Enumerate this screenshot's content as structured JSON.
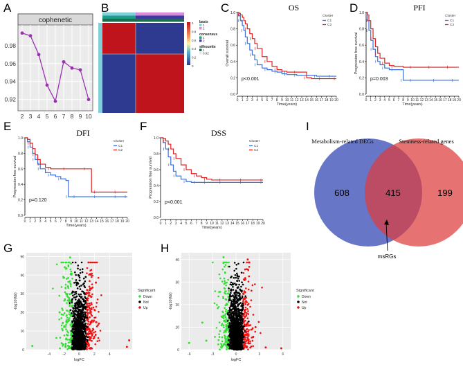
{
  "panel_letters": {
    "A": "A",
    "B": "B",
    "C": "C",
    "D": "D",
    "E": "E",
    "F": "F",
    "G": "G",
    "H": "H",
    "I": "I"
  },
  "chart_data": [
    {
      "id": "A",
      "type": "line",
      "title": "cophenetic",
      "x": [
        2,
        3,
        4,
        5,
        6,
        7,
        8,
        9,
        10
      ],
      "values": [
        0.994,
        0.991,
        0.97,
        0.936,
        0.918,
        0.962,
        0.955,
        0.953,
        0.92
      ],
      "xticks": [
        "2",
        "3",
        "4",
        "5",
        "6",
        "7",
        "8",
        "9",
        "10"
      ],
      "yticks": [
        "0.92",
        "0.94",
        "0.96",
        "0.98"
      ],
      "ylim": [
        0.912,
        1.0
      ],
      "color": "#9b30b0"
    },
    {
      "id": "B",
      "type": "heatmap",
      "matrix": [
        [
          1,
          0
        ],
        [
          0,
          1
        ]
      ],
      "top_bars": [
        "basis",
        "consensus",
        "silhouette"
      ],
      "legend_titles": [
        "basis",
        "consensus",
        "silhouette"
      ],
      "legend_items": {
        "basis": [
          "1",
          "2"
        ],
        "consensus": [
          "1",
          "2"
        ],
        "silhouette": [
          "1",
          "0.92"
        ]
      },
      "scale_ticks": [
        "1",
        "0.8",
        "0.6",
        "0.4",
        "0.2",
        "0"
      ],
      "colors": {
        "high": "#c0141c",
        "low": "#2e3a90",
        "basis1": "#7fd0d8",
        "basis2": "#d78ad8",
        "cons1": "#1f9d8a",
        "cons2": "#3c3ca0",
        "sil": "#1c6e4e"
      }
    },
    {
      "id": "C",
      "type": "line",
      "kind": "km",
      "title": "OS",
      "xlabel": "Time(years)",
      "ylabel": "Overall survival",
      "pvalue": "p<0.001",
      "legend_title": "Cluster",
      "xticks": [
        "0",
        "1",
        "2",
        "3",
        "4",
        "5",
        "6",
        "7",
        "8",
        "9",
        "10",
        "11",
        "12",
        "13",
        "14",
        "15",
        "16",
        "17",
        "18",
        "19",
        "20"
      ],
      "yticks": [
        "0.0",
        "0.2",
        "0.4",
        "0.6",
        "0.8",
        "1.0"
      ],
      "xlim": [
        0,
        20
      ],
      "ylim": [
        0,
        1
      ],
      "series": [
        {
          "name": "C1",
          "color": "#3a70d8",
          "x": [
            0,
            0.3,
            0.6,
            1,
            1.3,
            1.6,
            2,
            2.5,
            3,
            3.5,
            4,
            5,
            6,
            7,
            8,
            9,
            10,
            11,
            12,
            14,
            16,
            18,
            19,
            20
          ],
          "values": [
            1,
            0.96,
            0.9,
            0.84,
            0.78,
            0.7,
            0.62,
            0.54,
            0.48,
            0.42,
            0.36,
            0.32,
            0.3,
            0.28,
            0.27,
            0.25,
            0.24,
            0.24,
            0.23,
            0.23,
            0.22,
            0.22,
            0.22,
            0.22
          ]
        },
        {
          "name": "C2",
          "color": "#e02020",
          "x": [
            0,
            0.3,
            0.6,
            1,
            1.3,
            1.6,
            2,
            2.5,
            3,
            3.5,
            4,
            5,
            6,
            7,
            8,
            9,
            10,
            11,
            12,
            13,
            14,
            15,
            17,
            19,
            20
          ],
          "values": [
            1,
            0.99,
            0.97,
            0.94,
            0.9,
            0.86,
            0.8,
            0.74,
            0.68,
            0.62,
            0.56,
            0.46,
            0.4,
            0.34,
            0.3,
            0.28,
            0.27,
            0.27,
            0.27,
            0.27,
            0.2,
            0.19,
            0.19,
            0.19,
            0.19
          ]
        }
      ]
    },
    {
      "id": "D",
      "type": "line",
      "kind": "km",
      "title": "PFI",
      "xlabel": "Time(years)",
      "ylabel": "Progression free survival",
      "pvalue": "p=0.003",
      "legend_title": "Cluster",
      "xticks": [
        "0",
        "1",
        "2",
        "3",
        "4",
        "5",
        "6",
        "7",
        "8",
        "9",
        "10",
        "11",
        "12",
        "13",
        "14",
        "15",
        "16",
        "17",
        "18",
        "19",
        "20"
      ],
      "yticks": [
        "0.0",
        "0.2",
        "0.4",
        "0.6",
        "0.8",
        "1.0"
      ],
      "xlim": [
        0,
        20
      ],
      "ylim": [
        0,
        1
      ],
      "series": [
        {
          "name": "C1",
          "color": "#3a70d8",
          "x": [
            0,
            0.3,
            0.6,
            1,
            1.5,
            2,
            2.5,
            3,
            4,
            5,
            6,
            7,
            8,
            9,
            10,
            12,
            15,
            18,
            19,
            20
          ],
          "values": [
            1,
            0.9,
            0.78,
            0.66,
            0.55,
            0.46,
            0.4,
            0.36,
            0.32,
            0.3,
            0.3,
            0.3,
            0.17,
            0.17,
            0.17,
            0.17,
            0.17,
            0.17,
            0.17,
            0.17
          ]
        },
        {
          "name": "C2",
          "color": "#e02020",
          "x": [
            0,
            0.3,
            0.6,
            1,
            1.5,
            2,
            2.5,
            3,
            4,
            5,
            6,
            8,
            10,
            12,
            14,
            16,
            18,
            20
          ],
          "values": [
            1,
            0.97,
            0.9,
            0.8,
            0.68,
            0.58,
            0.5,
            0.44,
            0.38,
            0.35,
            0.34,
            0.33,
            0.33,
            0.33,
            0.33,
            0.33,
            0.33,
            0.33
          ]
        }
      ]
    },
    {
      "id": "E",
      "type": "line",
      "kind": "km",
      "title": "DFI",
      "xlabel": "Time(years)",
      "ylabel": "Progression free survival",
      "pvalue": "p=0.120",
      "legend_title": "Cluster",
      "xticks": [
        "0",
        "1",
        "2",
        "3",
        "4",
        "5",
        "6",
        "7",
        "8",
        "9",
        "10",
        "11",
        "12",
        "13",
        "14",
        "15",
        "16",
        "17",
        "18",
        "19",
        "20"
      ],
      "yticks": [
        "0.0",
        "0.2",
        "0.4",
        "0.6",
        "0.8",
        "1.0"
      ],
      "xlim": [
        0,
        20
      ],
      "ylim": [
        0,
        1
      ],
      "series": [
        {
          "name": "C1",
          "color": "#3a70d8",
          "x": [
            0,
            0.5,
            1,
            1.5,
            2,
            2.5,
            3,
            4,
            5,
            6,
            7,
            8,
            8.5,
            9,
            10,
            12,
            14,
            16,
            18,
            19,
            20
          ],
          "values": [
            1,
            0.95,
            0.88,
            0.8,
            0.72,
            0.66,
            0.6,
            0.55,
            0.52,
            0.5,
            0.47,
            0.45,
            0.24,
            0.24,
            0.24,
            0.24,
            0.24,
            0.24,
            0.24,
            0.24,
            0.24
          ]
        },
        {
          "name": "C2",
          "color": "#e02020",
          "x": [
            0,
            0.5,
            1,
            1.5,
            2,
            2.5,
            3,
            4,
            5,
            6,
            8,
            10,
            12,
            13,
            14,
            16,
            18,
            20
          ],
          "values": [
            1,
            0.98,
            0.93,
            0.86,
            0.78,
            0.72,
            0.66,
            0.62,
            0.6,
            0.6,
            0.6,
            0.6,
            0.6,
            0.3,
            0.3,
            0.3,
            0.3,
            0.3
          ]
        }
      ]
    },
    {
      "id": "F",
      "type": "line",
      "kind": "km",
      "title": "DSS",
      "xlabel": "Time(years)",
      "ylabel": "Progression free survival",
      "pvalue": "p<0.001",
      "legend_title": "Cluster",
      "xticks": [
        "0",
        "1",
        "2",
        "3",
        "4",
        "5",
        "6",
        "7",
        "8",
        "9",
        "10",
        "11",
        "12",
        "13",
        "14",
        "15",
        "16",
        "17",
        "18",
        "19",
        "20"
      ],
      "yticks": [
        "0.0",
        "0.2",
        "0.4",
        "0.6",
        "0.8",
        "1.0"
      ],
      "xlim": [
        0,
        20
      ],
      "ylim": [
        0,
        1
      ],
      "series": [
        {
          "name": "C1",
          "color": "#3a70d8",
          "x": [
            0,
            0.5,
            1,
            1.5,
            2,
            2.5,
            3,
            4,
            5,
            6,
            7,
            8,
            9,
            10,
            12,
            14,
            16,
            18,
            20
          ],
          "values": [
            1,
            0.94,
            0.86,
            0.76,
            0.66,
            0.58,
            0.52,
            0.48,
            0.45,
            0.44,
            0.44,
            0.44,
            0.44,
            0.44,
            0.44,
            0.44,
            0.44,
            0.44,
            0.44
          ]
        },
        {
          "name": "C2",
          "color": "#e02020",
          "x": [
            0,
            0.5,
            1,
            1.5,
            2,
            2.5,
            3,
            4,
            5,
            6,
            7,
            8,
            9,
            10,
            12,
            14,
            16,
            18,
            20
          ],
          "values": [
            1,
            0.99,
            0.96,
            0.92,
            0.86,
            0.8,
            0.74,
            0.66,
            0.6,
            0.55,
            0.52,
            0.5,
            0.48,
            0.47,
            0.47,
            0.47,
            0.47,
            0.47,
            0.47
          ]
        }
      ]
    },
    {
      "id": "G",
      "type": "scatter",
      "kind": "volcano",
      "xlabel": "logFC",
      "ylabel": "-log10(fdr)",
      "xticks": [
        "-4",
        "-2",
        "0",
        "2",
        "4"
      ],
      "yticks": [
        "0",
        "10",
        "20",
        "30",
        "40",
        "50"
      ],
      "xlim": [
        -7,
        7
      ],
      "ylim": [
        0,
        52
      ],
      "legend_title": "Significant",
      "legend": [
        "Down",
        "Not",
        "Up"
      ],
      "colors": {
        "Down": "#33dd33",
        "Not": "#000000",
        "Up": "#ee1111"
      },
      "outliers": {
        "Down": [
          [
            -6.2,
            2
          ],
          [
            -1.2,
            49.5
          ],
          [
            -1.5,
            34
          ],
          [
            -2.6,
            20
          ]
        ],
        "Up": [
          [
            6.3,
            1.5
          ],
          [
            6.6,
            5
          ],
          [
            2.2,
            36
          ],
          [
            2.6,
            14
          ]
        ]
      }
    },
    {
      "id": "H",
      "type": "scatter",
      "kind": "volcano",
      "xlabel": "logFC",
      "ylabel": "-log10(fdr)",
      "xticks": [
        "-6",
        "-3",
        "0",
        "3",
        "6"
      ],
      "yticks": [
        "0",
        "10",
        "20",
        "30",
        "40"
      ],
      "xlim": [
        -7,
        7
      ],
      "ylim": [
        0,
        43
      ],
      "legend_title": "Significant",
      "legend": [
        "Down",
        "Not",
        "Up"
      ],
      "colors": {
        "Down": "#33dd33",
        "Not": "#000000",
        "Up": "#ee1111"
      },
      "outliers": {
        "Down": [
          [
            -6.0,
            3
          ],
          [
            -3.8,
            4
          ],
          [
            -4.3,
            12
          ],
          [
            -1.6,
            41
          ]
        ],
        "Up": [
          [
            5.8,
            0.6
          ],
          [
            3.8,
            1
          ],
          [
            1.5,
            40
          ],
          [
            2.5,
            10
          ]
        ]
      }
    },
    {
      "id": "I",
      "type": "venn",
      "sets": [
        {
          "name": "Metabolism-related  DEGs",
          "only": 608,
          "color": "#3d4fb8"
        },
        {
          "name": "Stemness-related  genes",
          "only": 199,
          "color": "#dc3c3c"
        }
      ],
      "intersection": 415,
      "annotation": "msRGs"
    }
  ]
}
